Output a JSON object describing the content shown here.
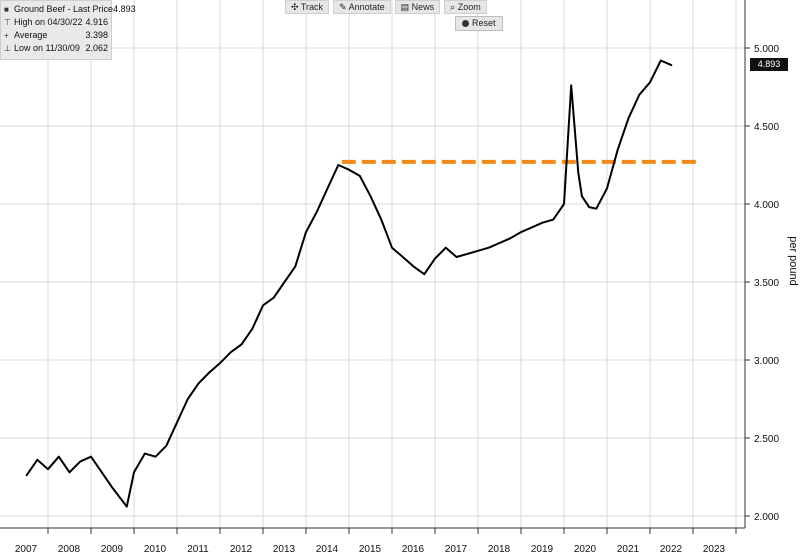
{
  "legend": {
    "series_label": "Ground Beef - Last Price",
    "last_price": "4.893",
    "high_label": "High on 04/30/22",
    "high_value": "4.916",
    "avg_label": "Average",
    "avg_value": "3.398",
    "low_label": "Low on 11/30/09",
    "low_value": "2.062"
  },
  "toolbar": {
    "track": "Track",
    "annotate": "Annotate",
    "news": "News",
    "zoom": "Zoom",
    "reset": "Reset"
  },
  "last_value_tag": "4.893",
  "colors": {
    "line": "#000000",
    "reference": "#f28a1a",
    "grid": "#d9d9d9",
    "axis": "#333333"
  },
  "chart_data": {
    "type": "line",
    "title": "",
    "xlabel": "",
    "ylabel": "per pound",
    "ylim": [
      2.0,
      5.0
    ],
    "yticks": [
      "2.000",
      "2.500",
      "3.000",
      "3.500",
      "4.000",
      "4.500",
      "5.000"
    ],
    "xticks": [
      "2007",
      "2008",
      "2009",
      "2010",
      "2011",
      "2012",
      "2013",
      "2014",
      "2015",
      "2016",
      "2017",
      "2018",
      "2019",
      "2020",
      "2021",
      "2022",
      "2023"
    ],
    "series": [
      {
        "x": [
          "2007-07",
          "2007-10",
          "2008-01",
          "2008-04",
          "2008-07",
          "2008-10",
          "2009-01",
          "2009-04",
          "2009-07",
          "2009-11",
          "2010-01",
          "2010-04",
          "2010-07",
          "2010-10",
          "2011-01",
          "2011-04",
          "2011-07",
          "2011-10",
          "2012-01",
          "2012-04",
          "2012-07",
          "2012-10",
          "2013-01",
          "2013-04",
          "2013-07",
          "2013-10",
          "2014-01",
          "2014-04",
          "2014-07",
          "2014-10",
          "2015-01",
          "2015-04",
          "2015-07",
          "2015-10",
          "2016-01",
          "2016-04",
          "2016-07",
          "2016-10",
          "2017-01",
          "2017-04",
          "2017-07",
          "2017-10",
          "2018-01",
          "2018-04",
          "2018-07",
          "2018-10",
          "2019-01",
          "2019-04",
          "2019-07",
          "2019-10",
          "2020-01",
          "2020-03",
          "2020-05",
          "2020-06",
          "2020-08",
          "2020-10",
          "2021-01",
          "2021-04",
          "2021-07",
          "2021-10",
          "2022-01",
          "2022-04",
          "2022-07"
        ],
        "values": [
          2.26,
          2.36,
          2.3,
          2.38,
          2.28,
          2.35,
          2.38,
          2.28,
          2.18,
          2.06,
          2.28,
          2.4,
          2.38,
          2.45,
          2.6,
          2.75,
          2.85,
          2.92,
          2.98,
          3.05,
          3.1,
          3.2,
          3.35,
          3.4,
          3.5,
          3.6,
          3.82,
          3.95,
          4.1,
          4.25,
          4.22,
          4.18,
          4.05,
          3.9,
          3.72,
          3.66,
          3.6,
          3.55,
          3.65,
          3.72,
          3.66,
          3.68,
          3.7,
          3.72,
          3.75,
          3.78,
          3.82,
          3.85,
          3.88,
          3.9,
          4.0,
          4.76,
          4.2,
          4.05,
          3.98,
          3.97,
          4.1,
          4.35,
          4.55,
          4.7,
          4.78,
          4.92,
          4.89
        ]
      }
    ],
    "reference_line": {
      "y": 4.27,
      "x_start": "2014-11",
      "x_end": "2023-03",
      "style": "dashed"
    },
    "last_value": 4.893,
    "grid": true
  }
}
